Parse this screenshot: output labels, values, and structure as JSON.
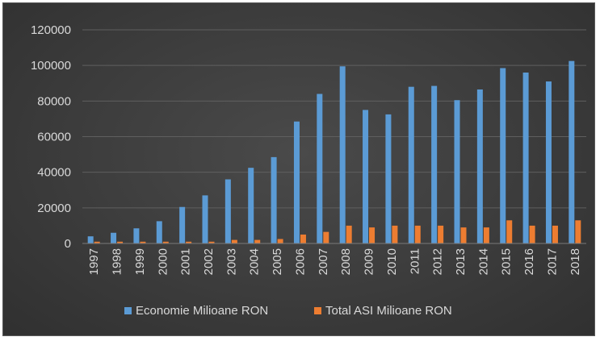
{
  "chart_data": {
    "type": "bar",
    "title": "",
    "xlabel": "",
    "ylabel": "",
    "categories": [
      "1997",
      "1998",
      "1999",
      "2000",
      "2001",
      "2002",
      "2003",
      "2004",
      "2005",
      "2006",
      "2007",
      "2008",
      "2009",
      "2010",
      "2011",
      "2012",
      "2013",
      "2014",
      "2015",
      "2016",
      "2017",
      "2018"
    ],
    "series": [
      {
        "name": "Economie Milioane RON",
        "color": "#5b9bd5",
        "values": [
          4000,
          6000,
          8500,
          12500,
          20500,
          27000,
          36000,
          42500,
          48500,
          68500,
          84000,
          99500,
          75000,
          72500,
          88000,
          88500,
          80500,
          86500,
          98500,
          96000,
          91000,
          102500
        ]
      },
      {
        "name": "Total ASI Milioane RON",
        "color": "#ed7d31",
        "values": [
          1000,
          1000,
          1000,
          1000,
          1000,
          1000,
          2000,
          2000,
          2500,
          5000,
          6500,
          10000,
          9000,
          10000,
          10000,
          10000,
          9000,
          9000,
          13000,
          10000,
          10000,
          13000
        ]
      }
    ],
    "yticks": [
      "0",
      "20000",
      "40000",
      "60000",
      "80000",
      "100000",
      "120000"
    ],
    "ylim": [
      0,
      120000
    ],
    "grid": true,
    "legend_position": "bottom",
    "background": "#404040",
    "grid_color": "#5f5f5f",
    "text_color": "#d9d9d9"
  }
}
